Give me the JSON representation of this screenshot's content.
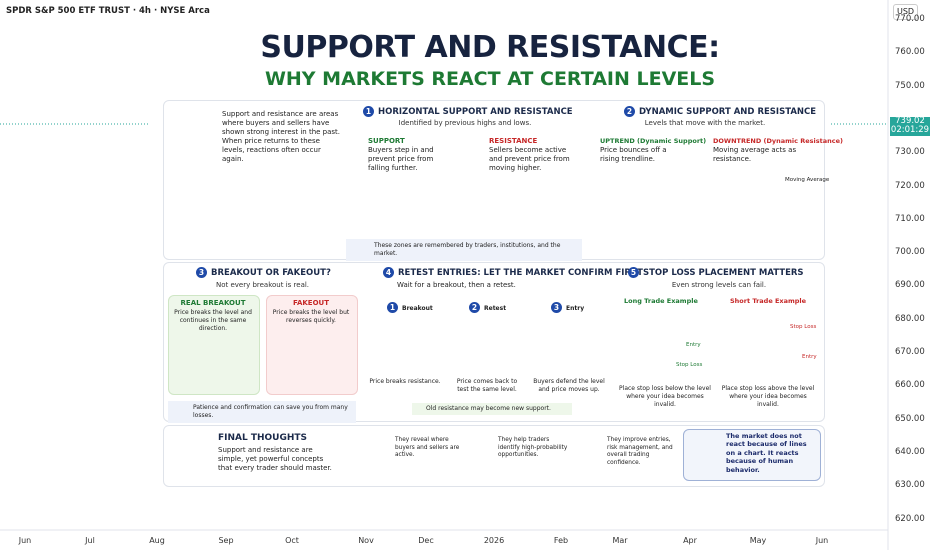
{
  "header": {
    "symbol": "SPDR S&P 500 ETF TRUST · 4h · NYSE Arca",
    "currency": "USD"
  },
  "price_axis": {
    "labels": [
      "770.00",
      "760.00",
      "750.00",
      "730.00",
      "720.00",
      "710.00",
      "700.00",
      "690.00",
      "680.00",
      "670.00",
      "660.00",
      "650.00",
      "640.00",
      "630.00",
      "620.00"
    ],
    "current_price": "739.02",
    "countdown": "02:01:29"
  },
  "time_axis": [
    "Jun",
    "Jul",
    "Aug",
    "Sep",
    "Oct",
    "Nov",
    "Dec",
    "2026",
    "Feb",
    "Mar",
    "Apr",
    "May",
    "Jun"
  ],
  "infographic": {
    "title": "SUPPORT AND RESISTANCE:",
    "subtitle": "WHY MARKETS REACT AT CERTAIN LEVELS",
    "intro": "Support and resistance are areas where buyers and sellers have shown strong interest in the past. When price returns to these levels, reactions often occur again.",
    "s1": {
      "number": "1",
      "title": "HORIZONTAL SUPPORT AND RESISTANCE",
      "subtitle": "Identified by previous highs and lows.",
      "a_head": "SUPPORT",
      "a_text": "Buyers step in and prevent price from falling further.",
      "b_head": "RESISTANCE",
      "b_text": "Sellers become active and prevent price from moving higher.",
      "note": "These zones are remembered by traders, institutions, and the market."
    },
    "s2": {
      "number": "2",
      "title": "DYNAMIC SUPPORT AND RESISTANCE",
      "subtitle": "Levels that move with the market.",
      "a_head": "UPTREND (Dynamic Support)",
      "a_text": "Price bounces off a rising trendline.",
      "b_head": "DOWNTREND (Dynamic Resistance)",
      "b_text": "Moving average acts as resistance.",
      "ma": "Moving Average"
    },
    "s3": {
      "number": "3",
      "title": "BREAKOUT OR FAKEOUT?",
      "subtitle": "Not every breakout is real.",
      "a_head": "REAL BREAKOUT",
      "a_text": "Price breaks the level and continues in the same direction.",
      "b_head": "FAKEOUT",
      "b_text": "Price breaks the level but reverses quickly.",
      "note": "Patience and confirmation can save you from many losses."
    },
    "s4": {
      "number": "4",
      "title": "RETEST ENTRIES: LET THE MARKET CONFIRM FIRST",
      "subtitle": "Wait for a breakout, then a retest.",
      "steps": [
        {
          "number": "1",
          "label": "Breakout",
          "text": "Price breaks resistance."
        },
        {
          "number": "2",
          "label": "Retest",
          "text": "Price comes back to test the same level."
        },
        {
          "number": "3",
          "label": "Entry",
          "text": "Buyers defend the level and price moves up."
        }
      ],
      "note": "Old resistance may become new support."
    },
    "s5": {
      "number": "5",
      "title": "STOP LOSS PLACEMENT MATTERS",
      "subtitle": "Even strong levels can fail.",
      "a_head": "Long Trade Example",
      "a_entry": "Entry",
      "a_stop": "Stop Loss",
      "a_text": "Place stop loss below the level where your idea becomes invalid.",
      "b_head": "Short Trade Example",
      "b_stop": "Stop Loss",
      "b_entry": "Entry",
      "b_text": "Place stop loss above the level where your idea becomes invalid."
    },
    "final": {
      "title": "FINAL THOUGHTS",
      "text": "Support and resistance are simple, yet powerful concepts that every trader should master.",
      "items": [
        "They reveal where buyers and sellers are active.",
        "They help traders identify high-probability opportunities.",
        "They improve entries, risk management, and overall trading confidence."
      ],
      "quote": "The market does not react because of lines on a chart. It reacts because of human behavior."
    }
  }
}
